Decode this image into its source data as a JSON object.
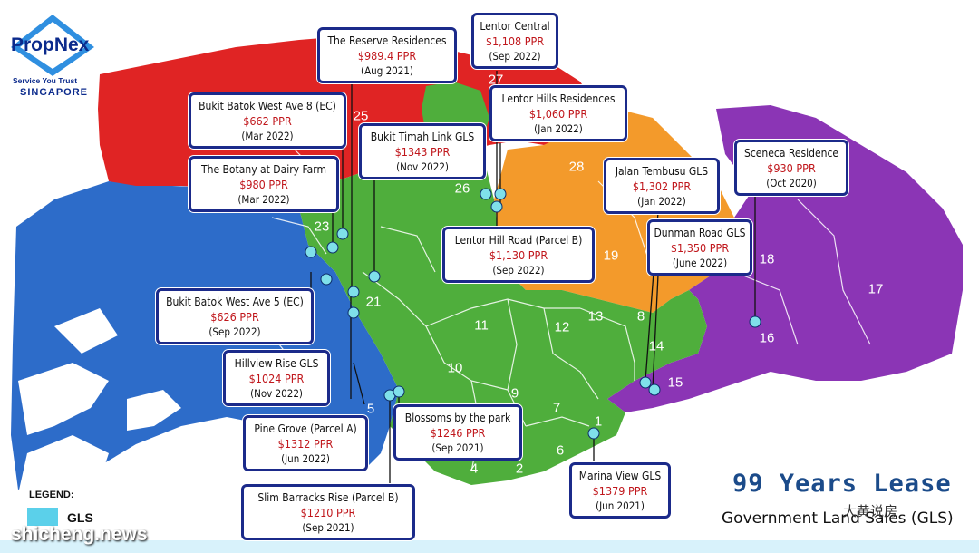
{
  "logo": {
    "name": "PropNex",
    "tagline": "Service You Trust",
    "country": "SINGAPORE"
  },
  "legend": {
    "title": "LEGEND:",
    "item": "GLS",
    "color": "#5bd0ea"
  },
  "footer": {
    "headline": "99 Years Lease",
    "subtitle": "Government Land Sales (GLS)",
    "watermark": "大黄说房",
    "site": "shicheng.news"
  },
  "colors": {
    "north_red": "#e02424",
    "west_blue": "#2d6cc9",
    "central_green": "#4fae3c",
    "orange": "#f39a2b",
    "east_purple": "#8b35b5",
    "callout_border": "#1b2a8a",
    "price_red": "#c0161b"
  },
  "districts": [
    "27",
    "25",
    "28",
    "26",
    "23",
    "21",
    "19",
    "18",
    "17",
    "11",
    "12",
    "13",
    "8",
    "14",
    "16",
    "15",
    "10",
    "9",
    "5",
    "7",
    "1",
    "6",
    "4",
    "2"
  ],
  "callouts": [
    {
      "name": "The Reserve Residences",
      "price": "$989.4 PPR",
      "date": "(Aug 2021)"
    },
    {
      "name": "Lentor Central",
      "price": "$1,108 PPR",
      "date": "(Sep 2022)"
    },
    {
      "name": "Lentor Hills Residences",
      "price": "$1,060 PPR",
      "date": "(Jan 2022)"
    },
    {
      "name": "Bukit Batok West Ave 8 (EC)",
      "price": "$662 PPR",
      "date": "(Mar 2022)"
    },
    {
      "name": "Bukit Timah Link GLS",
      "price": "$1343 PPR",
      "date": "(Nov 2022)"
    },
    {
      "name": "The Botany at Dairy Farm",
      "price": "$980 PPR",
      "date": "(Mar 2022)"
    },
    {
      "name": "Sceneca Residence",
      "price": "$930 PPR",
      "date": "(Oct 2020)"
    },
    {
      "name": "Jalan Tembusu GLS",
      "price": "$1,302 PPR",
      "date": "(Jan 2022)"
    },
    {
      "name": "Dunman Road GLS",
      "price": "$1,350 PPR",
      "date": "(June 2022)"
    },
    {
      "name": "Lentor Hill Road (Parcel B)",
      "price": "$1,130 PPR",
      "date": "(Sep 2022)"
    },
    {
      "name": "Bukit Batok West Ave 5 (EC)",
      "price": "$626 PPR",
      "date": "(Sep 2022)"
    },
    {
      "name": "Hillview Rise GLS",
      "price": "$1024 PPR",
      "date": "(Nov 2022)"
    },
    {
      "name": "Pine Grove (Parcel A)",
      "price": "$1312 PPR",
      "date": "(Jun 2022)"
    },
    {
      "name": "Blossoms by the park",
      "price": "$1246 PPR",
      "date": "(Sep 2021)"
    },
    {
      "name": "Marina View GLS",
      "price": "$1379 PPR",
      "date": "(Jun 2021)"
    },
    {
      "name": "Slim Barracks Rise (Parcel B)",
      "price": "$1210 PPR",
      "date": "(Sep 2021)"
    }
  ]
}
